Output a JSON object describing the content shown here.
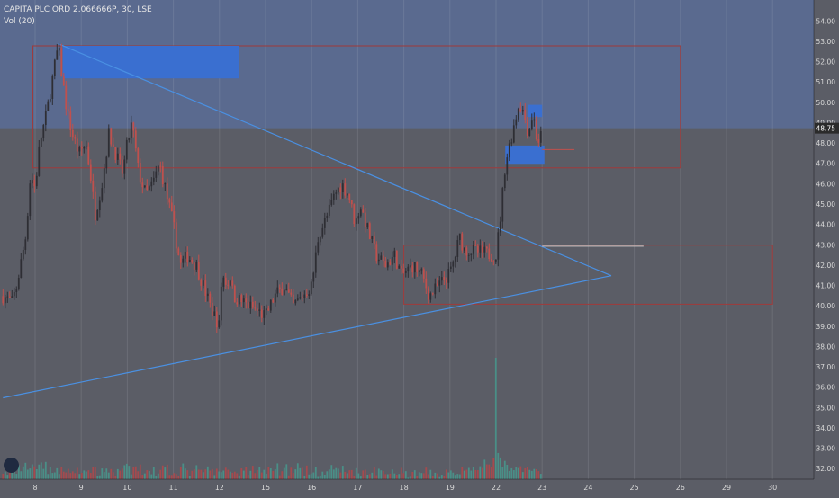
{
  "header": {
    "symbol_line": "CAPITA PLC ORD 2.066666P, 30, LSE",
    "volume_label": "Vol (20)"
  },
  "colors": {
    "background": "#5b5d66",
    "upper_zone": "#5a6a8f",
    "up_candle": "#2e2e34",
    "down_candle": "#c0504d",
    "volume_up": "#4a8f87",
    "volume_down": "#a54a4e",
    "trendline": "#4a90e2",
    "blue_box": "#3a6fd0",
    "rect_border": "#a03a3a",
    "price_badge": "#2b2b2b"
  },
  "chart_data": {
    "type": "candlestick",
    "ylim": [
      31.5,
      54.7
    ],
    "y_ticks": [
      "32.00",
      "33.00",
      "34.00",
      "35.00",
      "36.00",
      "37.00",
      "38.00",
      "39.00",
      "40.00",
      "41.00",
      "42.00",
      "43.00",
      "44.00",
      "45.00",
      "46.00",
      "47.00",
      "48.00",
      "49.00",
      "50.00",
      "51.00",
      "52.00",
      "53.00",
      "54.00"
    ],
    "x_ticks": [
      {
        "label": "8",
        "day": 8
      },
      {
        "label": "9",
        "day": 9
      },
      {
        "label": "10",
        "day": 10
      },
      {
        "label": "11",
        "day": 11
      },
      {
        "label": "12",
        "day": 12
      },
      {
        "label": "15",
        "day": 15
      },
      {
        "label": "16",
        "day": 16
      },
      {
        "label": "17",
        "day": 17
      },
      {
        "label": "18",
        "day": 18
      },
      {
        "label": "19",
        "day": 19
      },
      {
        "label": "22",
        "day": 22
      },
      {
        "label": "23",
        "day": 23
      },
      {
        "label": "24",
        "day": 24
      },
      {
        "label": "25",
        "day": 25
      },
      {
        "label": "26",
        "day": 26
      },
      {
        "label": "29",
        "day": 29
      },
      {
        "label": "30",
        "day": 30
      }
    ],
    "last_price": "48.75",
    "price_path": [
      [
        7.3,
        40.5
      ],
      [
        7.5,
        40.2
      ],
      [
        7.6,
        41.0
      ],
      [
        7.8,
        43.5
      ],
      [
        7.9,
        46.5
      ],
      [
        8.0,
        45.8
      ],
      [
        8.1,
        48.0
      ],
      [
        8.25,
        49.5
      ],
      [
        8.4,
        51.5
      ],
      [
        8.5,
        52.8
      ],
      [
        8.6,
        51.0
      ],
      [
        8.7,
        49.5
      ],
      [
        8.8,
        48.5
      ],
      [
        8.95,
        47.5
      ],
      [
        9.1,
        48.0
      ],
      [
        9.2,
        46.5
      ],
      [
        9.3,
        44.5
      ],
      [
        9.45,
        46.0
      ],
      [
        9.6,
        48.5
      ],
      [
        9.75,
        47.5
      ],
      [
        9.9,
        46.5
      ],
      [
        10.0,
        48.0
      ],
      [
        10.1,
        49.0
      ],
      [
        10.25,
        46.5
      ],
      [
        10.4,
        45.5
      ],
      [
        10.55,
        46.0
      ],
      [
        10.7,
        47.0
      ],
      [
        10.85,
        45.5
      ],
      [
        11.0,
        44.0
      ],
      [
        11.15,
        42.0
      ],
      [
        11.3,
        42.5
      ],
      [
        11.5,
        42.0
      ],
      [
        11.65,
        41.0
      ],
      [
        11.8,
        40.0
      ],
      [
        12.0,
        39.0
      ],
      [
        12.1,
        41.0
      ],
      [
        12.3,
        41.5
      ],
      [
        12.5,
        41.0
      ],
      [
        12.7,
        41.5
      ],
      [
        12.9,
        40.5
      ],
      [
        15.0,
        39.5
      ],
      [
        15.2,
        40.5
      ],
      [
        15.4,
        41.0
      ],
      [
        15.6,
        40.0
      ],
      [
        15.8,
        40.5
      ],
      [
        16.0,
        41.0
      ],
      [
        16.15,
        43.5
      ],
      [
        16.35,
        44.5
      ],
      [
        16.5,
        45.5
      ],
      [
        16.65,
        46.0
      ],
      [
        16.8,
        45.5
      ],
      [
        16.95,
        44.0
      ],
      [
        17.05,
        45.0
      ],
      [
        17.25,
        43.5
      ],
      [
        17.4,
        42.5
      ],
      [
        17.6,
        42.0
      ],
      [
        17.8,
        42.5
      ],
      [
        17.95,
        41.5
      ],
      [
        18.2,
        42.0
      ],
      [
        18.4,
        41.5
      ],
      [
        18.55,
        40.5
      ],
      [
        18.75,
        41.0
      ],
      [
        18.95,
        41.5
      ],
      [
        19.15,
        42.0
      ],
      [
        19.35,
        42.5
      ],
      [
        19.5,
        43.0
      ],
      [
        19.7,
        43.5
      ],
      [
        19.85,
        42.8
      ],
      [
        22.0,
        42.5
      ],
      [
        22.1,
        44.5
      ],
      [
        22.2,
        47.0
      ],
      [
        22.3,
        48.0
      ],
      [
        22.4,
        49.0
      ],
      [
        22.5,
        50.0
      ],
      [
        22.6,
        49.5
      ],
      [
        22.7,
        48.5
      ],
      [
        22.8,
        49.5
      ],
      [
        22.9,
        48.0
      ],
      [
        23.0,
        48.5
      ]
    ],
    "volume_profile": [
      [
        7.3,
        0.2
      ],
      [
        8.0,
        0.8
      ],
      [
        8.2,
        0.6
      ],
      [
        8.5,
        0.45
      ],
      [
        9.0,
        0.4
      ],
      [
        10.0,
        0.45
      ],
      [
        11.0,
        0.55
      ],
      [
        12.0,
        0.35
      ],
      [
        15.0,
        0.55
      ],
      [
        16.5,
        0.4
      ],
      [
        17.5,
        0.35
      ],
      [
        18.5,
        0.3
      ],
      [
        19.5,
        0.3
      ],
      [
        22.0,
        1.0
      ],
      [
        22.3,
        0.6
      ],
      [
        23.0,
        0.3
      ]
    ],
    "drawings": {
      "upper_zone": {
        "y1": 48.75,
        "y2": 54.7
      },
      "rect_top": {
        "x1": 7.95,
        "x2": 26.0,
        "y1": 46.8,
        "y2": 52.8
      },
      "rect_mid": {
        "x1": 18.0,
        "x2": 31.0,
        "y1": 40.1,
        "y2": 43.0
      },
      "blue_box_top": {
        "x1": 8.6,
        "x2": 13.3,
        "y1": 51.2,
        "y2": 52.8
      },
      "blue_box_right": {
        "x1": 22.2,
        "x2": 23.05,
        "y1": 47.0,
        "y2": 47.9
      },
      "blue_box_right_small": {
        "x1": 22.7,
        "x2": 23.0,
        "y1": 49.3,
        "y2": 49.9
      },
      "trend_upper": {
        "x1": 8.5,
        "y1": 52.9,
        "x2": 24.5,
        "y2": 41.5
      },
      "trend_lower": {
        "x1": 7.3,
        "y1": 35.5,
        "x2": 24.5,
        "y2": 41.5
      },
      "hline_mid": {
        "x1": 23.0,
        "x2": 25.2,
        "y": 42.95
      },
      "hline_right": {
        "x1": 23.0,
        "x2": 23.7,
        "y": 47.7
      }
    }
  }
}
